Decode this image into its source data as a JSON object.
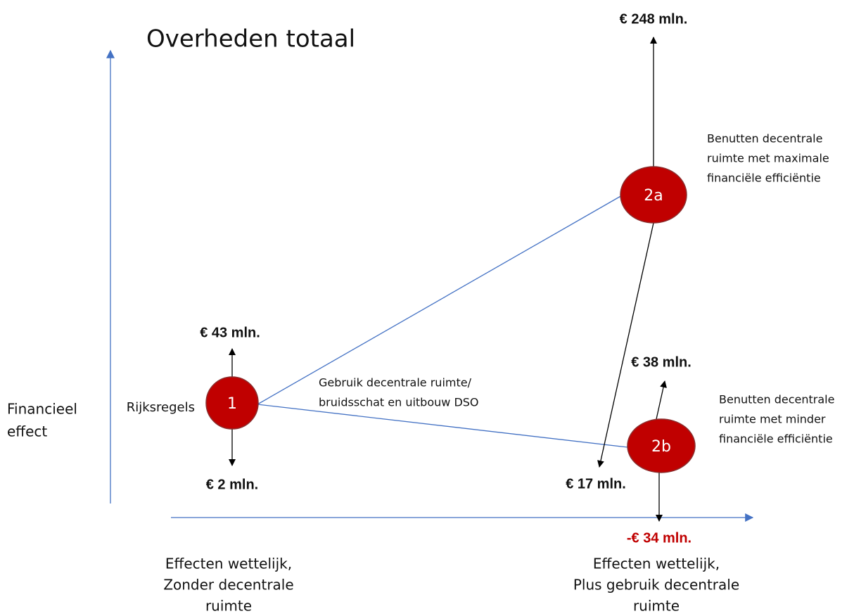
{
  "title": "Overheden totaal",
  "y_axis_label": [
    "Financieel",
    "effect"
  ],
  "x_axis_labels": {
    "left": [
      "Effecten wettelijk,",
      "Zonder decentrale",
      "ruimte"
    ],
    "right": [
      "Effecten wettelijk,",
      "Plus gebruik decentrale",
      "ruimte"
    ]
  },
  "nodes": [
    {
      "label": "1",
      "name": "Rijksregels",
      "up": "€ 43 mln.",
      "down": "€ 2 mln."
    },
    {
      "label": "2a",
      "description": [
        "Benutten decentrale",
        "ruimte met maximale",
        "financiële efficiëntie"
      ],
      "up": "€ 248 mln.",
      "down": "€ 17 mln."
    },
    {
      "label": "2b",
      "description": [
        "Benutten decentrale",
        "ruimte met minder",
        "financiële efficiëntie"
      ],
      "up": "€ 38 mln.",
      "down": "-€ 34 mln."
    }
  ],
  "edge_label": [
    "Gebruik decentrale ruimte/",
    "bruidsschat en uitbouw DSO"
  ]
}
